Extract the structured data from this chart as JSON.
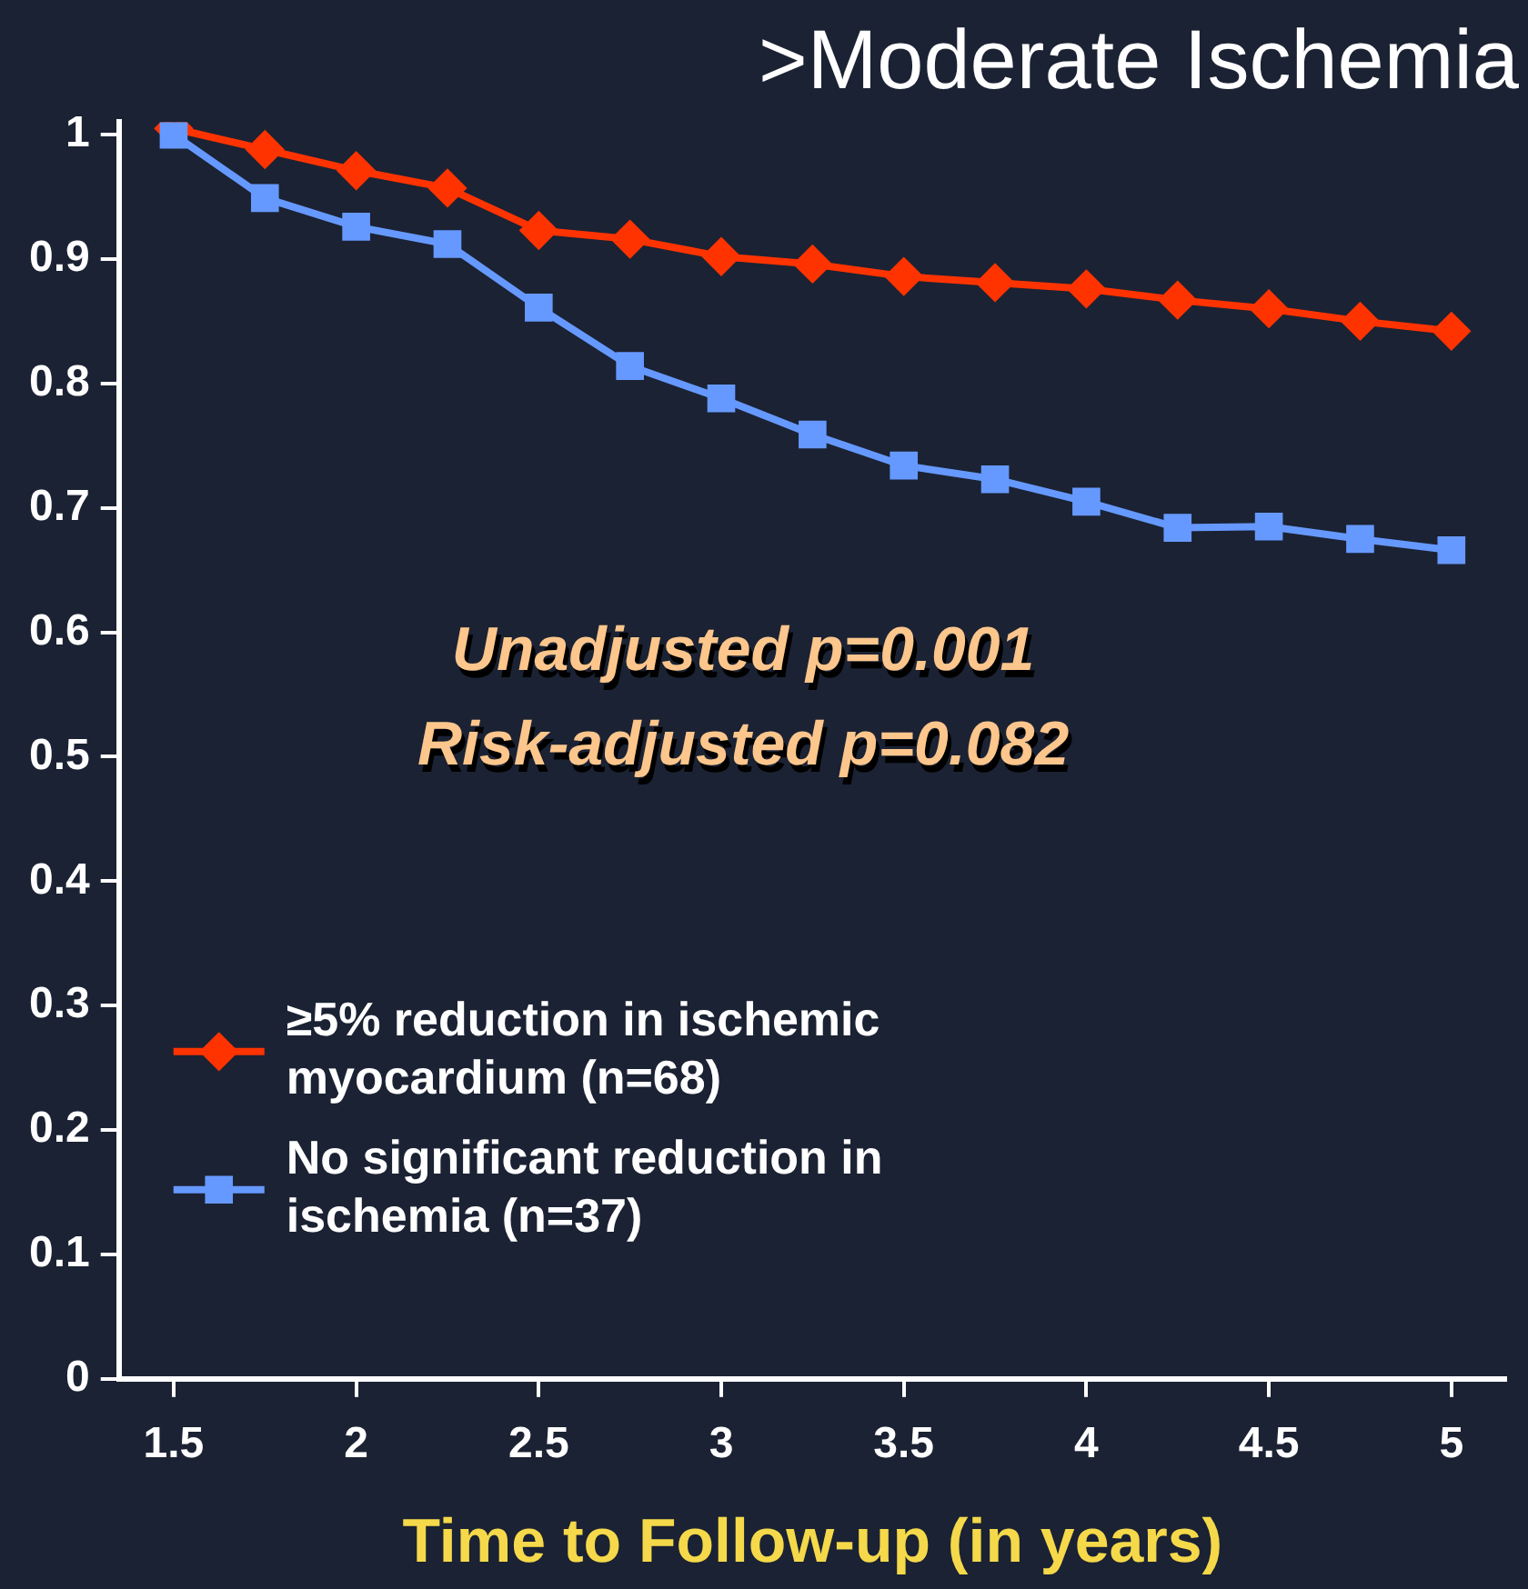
{
  "chart_data": {
    "type": "line",
    "title": ">Moderate Ischemia",
    "xlabel": "Time to Follow-up (in years)",
    "x": [
      1.5,
      1.75,
      2,
      2.25,
      2.5,
      2.75,
      3,
      3.25,
      3.5,
      3.75,
      4,
      4.25,
      4.5,
      4.75,
      5
    ],
    "series": [
      {
        "name": "≥5% reduction in ischemic myocardium (n=68)",
        "color": "#ff3300",
        "marker": "diamond",
        "values": [
          1.005,
          0.988,
          0.971,
          0.957,
          0.923,
          0.916,
          0.902,
          0.896,
          0.886,
          0.881,
          0.876,
          0.867,
          0.86,
          0.85,
          0.842
        ]
      },
      {
        "name": "No significant reduction in ischemia (n=37)",
        "color": "#6699ff",
        "marker": "square",
        "values": [
          1.0,
          0.949,
          0.926,
          0.912,
          0.861,
          0.814,
          0.788,
          0.759,
          0.734,
          0.723,
          0.705,
          0.684,
          0.685,
          0.675,
          0.666
        ]
      }
    ],
    "annotations": [
      "Unadjusted p=0.001",
      "Risk-adjusted p=0.082"
    ],
    "xlim": [
      1.35,
      5.15
    ],
    "xticks": [
      1.5,
      2,
      2.5,
      3,
      3.5,
      4,
      4.5,
      5
    ],
    "ylim": [
      0,
      1.01
    ],
    "yticks": [
      0,
      0.1,
      0.2,
      0.3,
      0.4,
      0.5,
      0.6,
      0.7,
      0.8,
      0.9,
      1
    ],
    "grid": false,
    "legend": "bottom left",
    "line_style": "solid"
  }
}
